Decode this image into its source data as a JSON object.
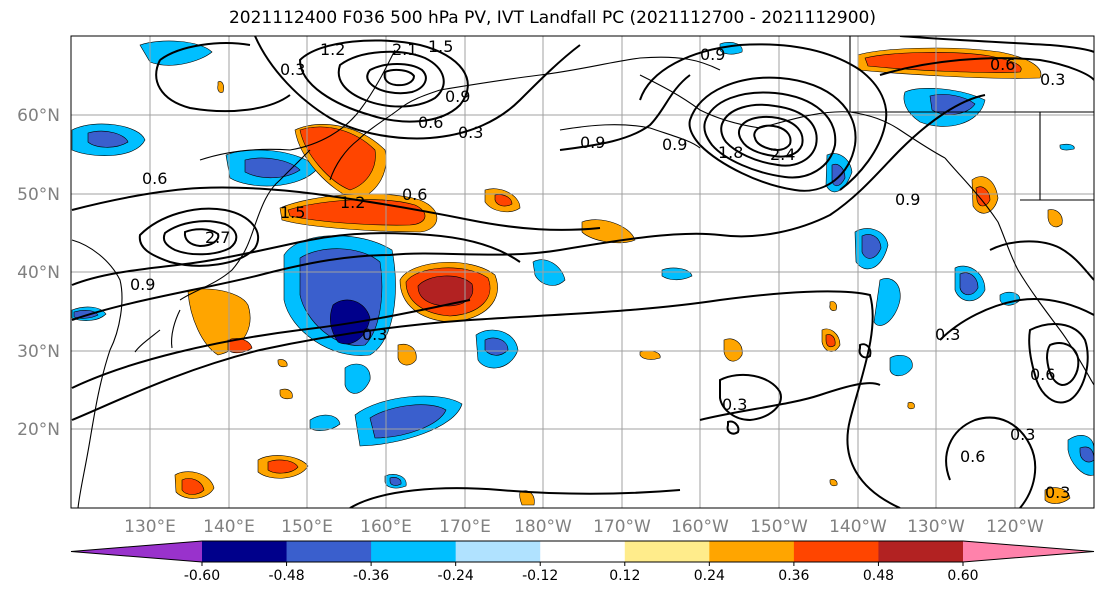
{
  "title": "2021112400 F036 500 hPa PV, IVT Landfall PC (2021112700 - 2021112900)",
  "lat_labels": [
    "60°N",
    "50°N",
    "40°N",
    "30°N",
    "20°N"
  ],
  "lon_labels": [
    "130°E",
    "140°E",
    "150°E",
    "160°E",
    "170°E",
    "180°W",
    "170°W",
    "160°W",
    "150°W",
    "140°W",
    "130°W",
    "120°W"
  ],
  "colorbar": {
    "colors": [
      "#9932CC",
      "#00008B",
      "#3A5FCD",
      "#00BFFF",
      "#B0E2FF",
      "#FFFFFF",
      "#FFEC8B",
      "#FFA500",
      "#FF4500",
      "#B22222",
      "#FF82AB"
    ],
    "tick_labels": [
      "-0.60",
      "-0.48",
      "-0.36",
      "-0.24",
      "-0.12",
      "0.12",
      "0.24",
      "0.36",
      "0.48",
      "0.60"
    ]
  },
  "contour_labels": [
    "2.1",
    "1.5",
    "1.2",
    "0.9",
    "0.6",
    "0.3",
    "2.4",
    "1.8",
    "2.7",
    "1.5",
    "1.2",
    "0.9",
    "0.6",
    "0.3",
    "0.6",
    "0.3",
    "0.9",
    "0.3",
    "0.6",
    "0.3",
    "0.9",
    "0.3",
    "0.3",
    "0.6",
    "0.3",
    "0.9",
    "0.6",
    "0.9"
  ]
}
